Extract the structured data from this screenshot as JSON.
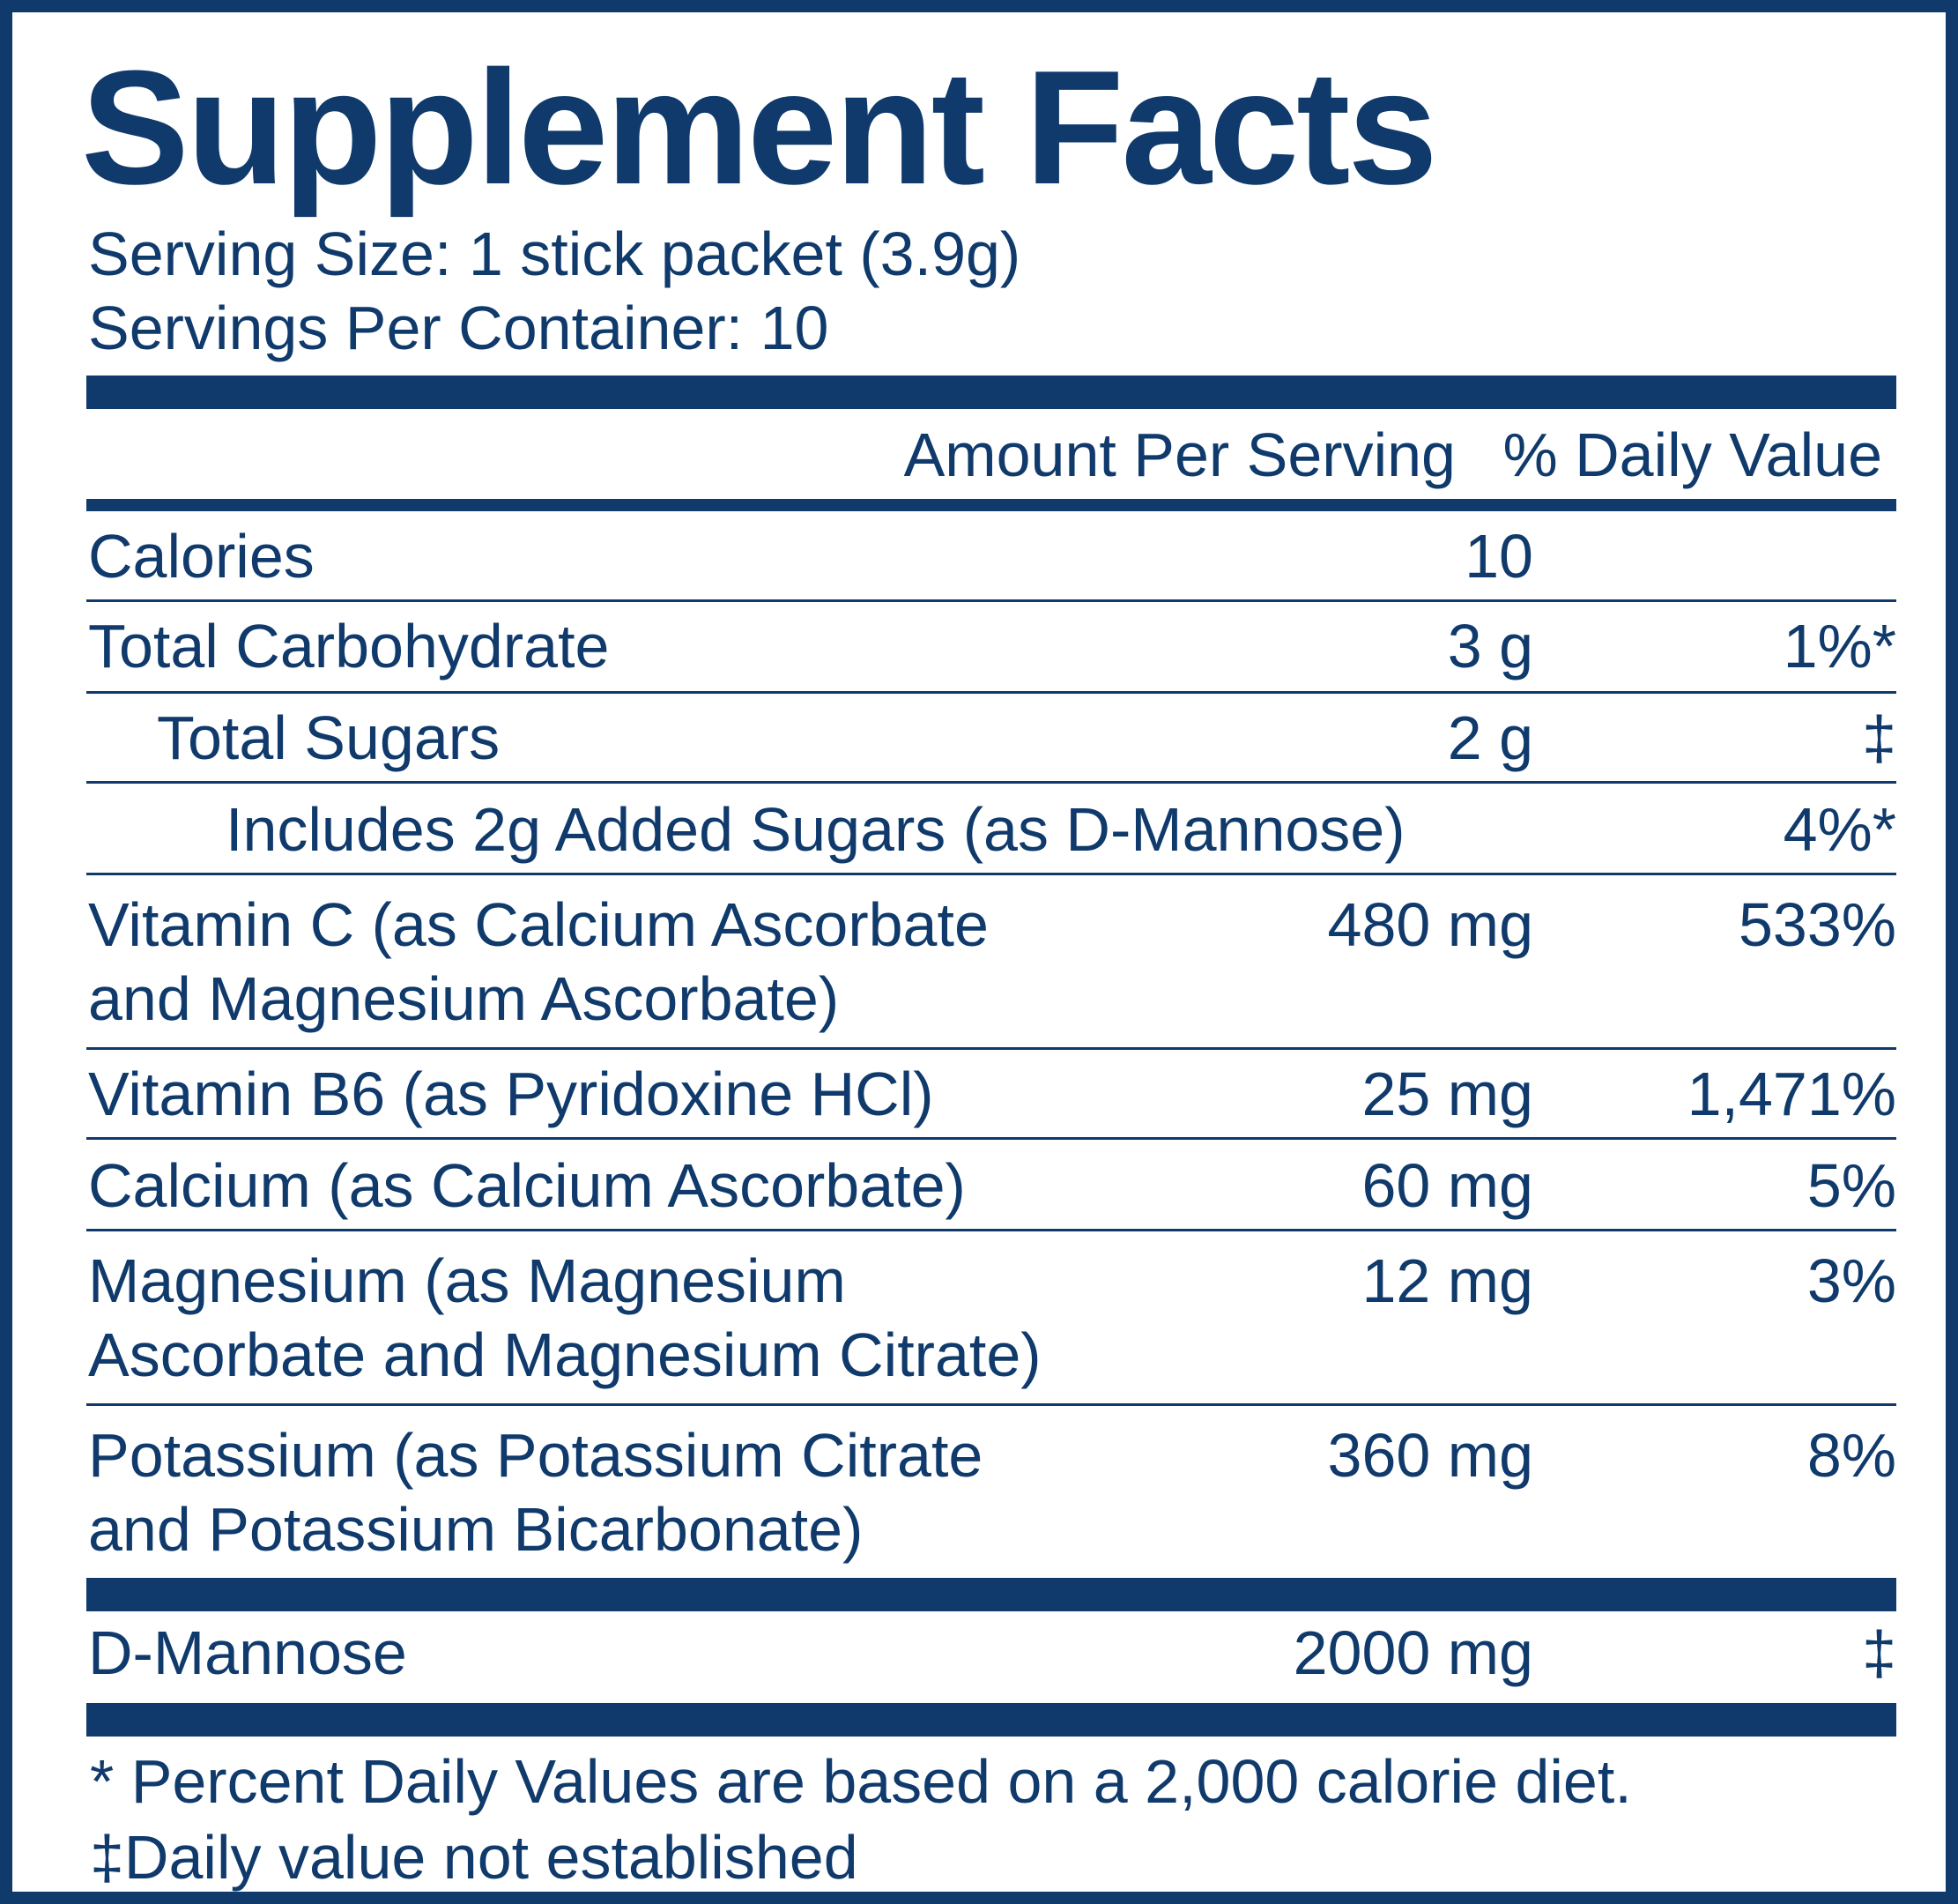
{
  "title": "Supplement Facts",
  "serving_size": "Serving Size: 1 stick packet (3.9g)",
  "servings_per_container": "Servings Per Container: 10",
  "header": {
    "amount": "Amount Per Serving",
    "daily_value": "% Daily Value"
  },
  "rows": [
    {
      "name": "Calories",
      "amount": "10",
      "dv": ""
    },
    {
      "name": "Total Carbohydrate",
      "amount": "3 g",
      "dv": "1%*"
    },
    {
      "name": "Total Sugars",
      "amount": "2 g",
      "dv": "‡"
    },
    {
      "name": "Includes 2g Added Sugars (as D-Mannose)",
      "amount": "",
      "dv": "4%*"
    },
    {
      "name": "Vitamin C (as Calcium Ascorbate",
      "name2": "and Magnesium Ascorbate)",
      "amount": "480 mg",
      "dv": "533%"
    },
    {
      "name": "Vitamin B6 (as Pyridoxine HCl)",
      "amount": "25 mg",
      "dv": "1,471%"
    },
    {
      "name": "Calcium (as Calcium Ascorbate)",
      "amount": "60 mg",
      "dv": "5%"
    },
    {
      "name": "Magnesium (as Magnesium",
      "name2": "Ascorbate and Magnesium Citrate)",
      "amount": "12 mg",
      "dv": "3%"
    },
    {
      "name": "Potassium (as Potassium Citrate",
      "name2": "and Potassium Bicarbonate)",
      "amount": "360 mg",
      "dv": "8%"
    }
  ],
  "other": {
    "name": "D-Mannose",
    "amount": "2000 mg",
    "dv": "‡"
  },
  "footnotes": {
    "percent": "* Percent Daily Values are based on a 2,000 calorie diet.",
    "not_established": "‡Daily value not established"
  },
  "colors": {
    "brand_navy": "#0f3a6b",
    "background": "#ffffff"
  }
}
